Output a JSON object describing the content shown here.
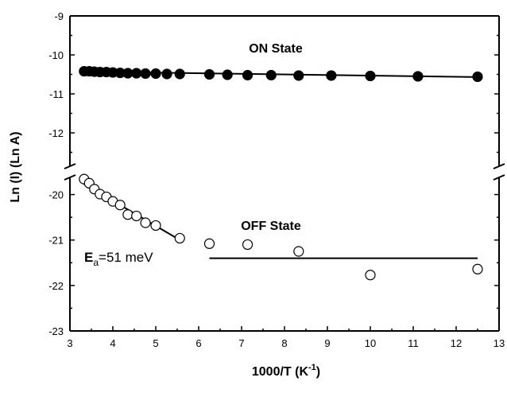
{
  "chart_data": {
    "type": "scatter",
    "xlabel_main": "1000/T (K",
    "xlabel_sup": "-1",
    "xlabel_close": ")",
    "ylabel": "Ln (I) (Ln A)",
    "xlim": [
      3,
      13
    ],
    "xticks": [
      "3",
      "4",
      "5",
      "6",
      "7",
      "8",
      "9",
      "10",
      "11",
      "12",
      "13"
    ],
    "y_broken_axis": true,
    "upper_panel": {
      "ylim": [
        -13,
        -9
      ],
      "yticks": [
        "-9",
        "-10",
        "-11",
        "-12"
      ]
    },
    "lower_panel": {
      "ylim": [
        -23,
        -19.5
      ],
      "yticks": [
        "-20",
        "-21",
        "-22",
        "-23"
      ]
    },
    "series": [
      {
        "name": "ON State",
        "panel": "upper",
        "marker": "filled-circle",
        "x": [
          3.33,
          3.45,
          3.57,
          3.7,
          3.85,
          4.0,
          4.17,
          4.35,
          4.55,
          4.76,
          5.0,
          5.26,
          5.56,
          6.25,
          6.67,
          7.14,
          7.69,
          8.33,
          9.09,
          10.0,
          11.11,
          12.5
        ],
        "y": [
          -10.42,
          -10.42,
          -10.43,
          -10.44,
          -10.44,
          -10.45,
          -10.46,
          -10.47,
          -10.47,
          -10.48,
          -10.48,
          -10.49,
          -10.49,
          -10.5,
          -10.51,
          -10.52,
          -10.52,
          -10.53,
          -10.53,
          -10.54,
          -10.55,
          -10.56
        ],
        "fit": {
          "x": [
            3.3,
            12.5
          ],
          "y": [
            -10.43,
            -10.57
          ]
        }
      },
      {
        "name": "OFF State",
        "panel": "lower",
        "marker": "open-circle",
        "x": [
          3.33,
          3.45,
          3.57,
          3.7,
          3.85,
          4.0,
          4.17,
          4.35,
          4.55,
          4.76,
          5.0,
          5.56,
          6.25,
          7.14,
          8.33,
          10.0,
          12.5
        ],
        "y": [
          -19.66,
          -19.75,
          -19.88,
          -19.99,
          -20.05,
          -20.15,
          -20.23,
          -20.44,
          -20.47,
          -20.62,
          -20.68,
          -20.96,
          -21.08,
          -21.1,
          -21.25,
          -21.77,
          -21.64
        ],
        "fits": [
          {
            "x": [
              3.3,
              5.6
            ],
            "y": [
              -19.75,
              -21.02
            ]
          },
          {
            "x": [
              6.25,
              12.5
            ],
            "y": [
              -21.4,
              -21.4
            ]
          }
        ]
      }
    ],
    "annotations": {
      "on_label": "ON State",
      "off_label": "OFF State",
      "ea_main": "E",
      "ea_sub": "a",
      "ea_value": "=51 meV"
    }
  }
}
